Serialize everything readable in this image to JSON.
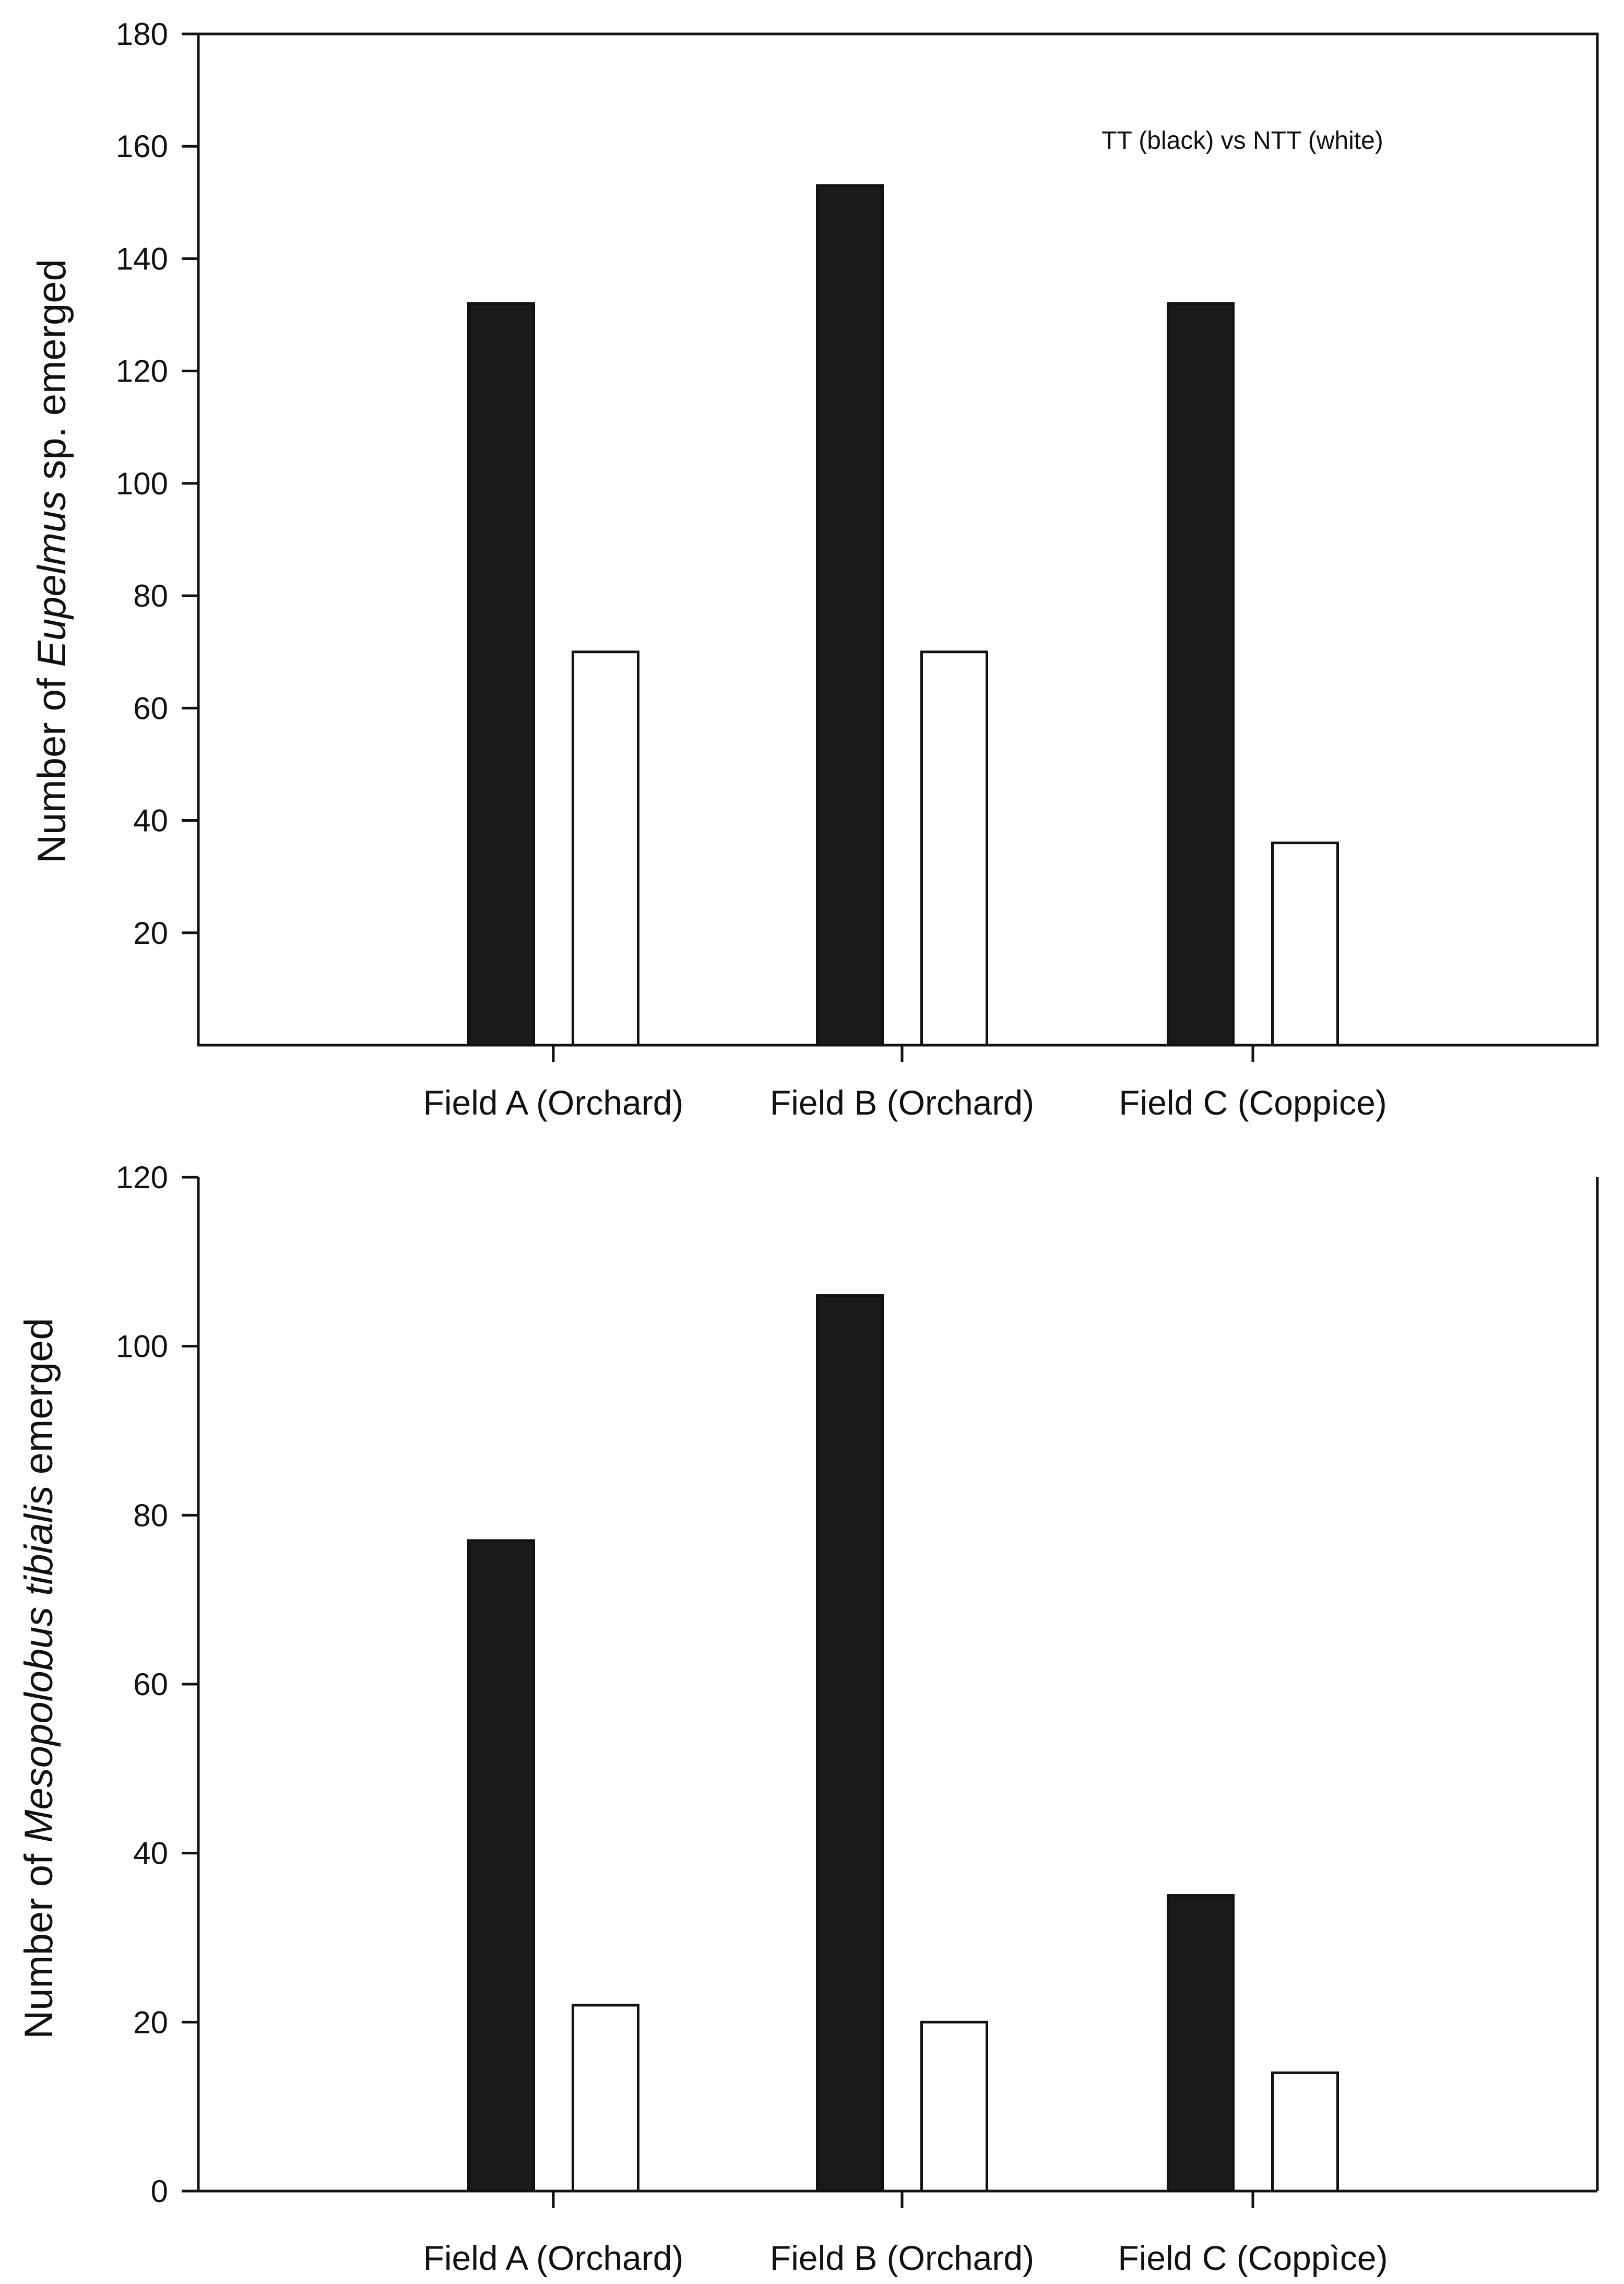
{
  "chart_data": [
    {
      "type": "bar",
      "title": "",
      "annotation": "TT (black) vs NTT (white)",
      "ylabel": {
        "prefix": "Number of ",
        "italic": "Eupelmus",
        "suffix": " sp. emerged"
      },
      "xlabel": "",
      "categories": [
        "Field A (Orchard)",
        "Field B (Orchard)",
        "Field C (Coppice)"
      ],
      "series": [
        {
          "name": "TT",
          "color": "#1a1a1a",
          "values": [
            132,
            153,
            132
          ]
        },
        {
          "name": "NTT",
          "color": "#ffffff",
          "values": [
            70,
            70,
            36
          ]
        }
      ],
      "ylim": [
        0,
        180
      ],
      "yticks": [
        20,
        40,
        60,
        80,
        100,
        120,
        140,
        160,
        180
      ],
      "grid": false
    },
    {
      "type": "bar",
      "title": "",
      "ylabel": {
        "prefix": "Number of ",
        "italic": "Mesopolobus tibialis",
        "suffix": " emerged"
      },
      "xlabel": "",
      "categories": [
        "Field A (Orchard)",
        "Field B (Orchard)",
        "Field C (Coppìce)"
      ],
      "series": [
        {
          "name": "TT",
          "color": "#1a1a1a",
          "values": [
            77,
            106,
            35
          ]
        },
        {
          "name": "NTT",
          "color": "#ffffff",
          "values": [
            22,
            20,
            14
          ]
        }
      ],
      "ylim": [
        0,
        120
      ],
      "yticks": [
        0,
        20,
        40,
        60,
        80,
        100,
        120
      ],
      "grid": false
    }
  ]
}
